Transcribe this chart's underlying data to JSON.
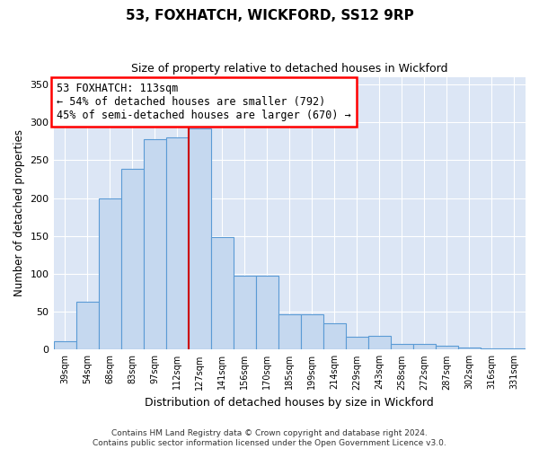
{
  "title1": "53, FOXHATCH, WICKFORD, SS12 9RP",
  "title2": "Size of property relative to detached houses in Wickford",
  "xlabel": "Distribution of detached houses by size in Wickford",
  "ylabel": "Number of detached properties",
  "footer1": "Contains HM Land Registry data © Crown copyright and database right 2024.",
  "footer2": "Contains public sector information licensed under the Open Government Licence v3.0.",
  "annotation_line1": "53 FOXHATCH: 113sqm",
  "annotation_line2": "← 54% of detached houses are smaller (792)",
  "annotation_line3": "45% of semi-detached houses are larger (670) →",
  "categories": [
    "39sqm",
    "54sqm",
    "68sqm",
    "83sqm",
    "97sqm",
    "112sqm",
    "127sqm",
    "141sqm",
    "156sqm",
    "170sqm",
    "185sqm",
    "199sqm",
    "214sqm",
    "229sqm",
    "243sqm",
    "258sqm",
    "272sqm",
    "287sqm",
    "302sqm",
    "316sqm",
    "331sqm"
  ],
  "bar_heights": [
    11,
    63,
    200,
    238,
    278,
    280,
    292,
    149,
    97,
    97,
    47,
    47,
    35,
    17,
    18,
    8,
    8,
    5,
    3,
    2,
    2
  ],
  "bar_color": "#c5d8ef",
  "bar_edge_color": "#5b9bd5",
  "marker_color": "#cc0000",
  "bg_color": "#dce6f5",
  "ylim": [
    0,
    360
  ],
  "yticks": [
    0,
    50,
    100,
    150,
    200,
    250,
    300,
    350
  ],
  "marker_bin_index": 5,
  "annotation_text_fontsize": 8.5
}
